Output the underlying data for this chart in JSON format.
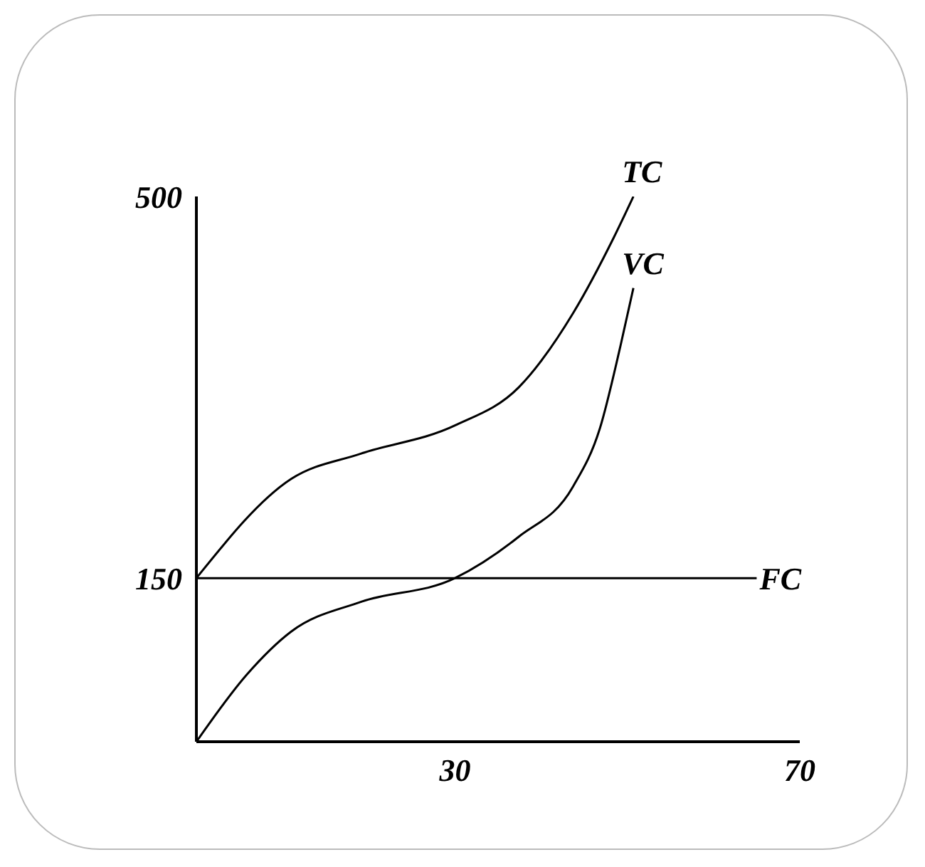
{
  "chart_data": {
    "type": "line",
    "xlim": [
      0,
      70
    ],
    "ylim": [
      0,
      500
    ],
    "xticks": [
      30,
      70
    ],
    "yticks": [
      150,
      500
    ],
    "grid": false,
    "legend": false,
    "marker": "none",
    "series": [
      {
        "name": "TC",
        "color": "#000000",
        "x": [
          0,
          11,
          19,
          30,
          37.4,
          43.7,
          48.4,
          50.7
        ],
        "values": [
          150,
          241,
          264,
          290,
          325,
          393,
          462,
          500
        ]
      },
      {
        "name": "VC",
        "color": "#000000",
        "x": [
          0,
          5.9,
          11,
          19,
          30,
          37.4,
          43.7,
          46.8,
          49.2,
          50.7
        ],
        "values": [
          0,
          62,
          101,
          128,
          150,
          188,
          234,
          287,
          363,
          416
        ]
      },
      {
        "name": "FC",
        "color": "#000000",
        "x": [
          0,
          65
        ],
        "values": [
          150,
          150
        ]
      }
    ]
  }
}
